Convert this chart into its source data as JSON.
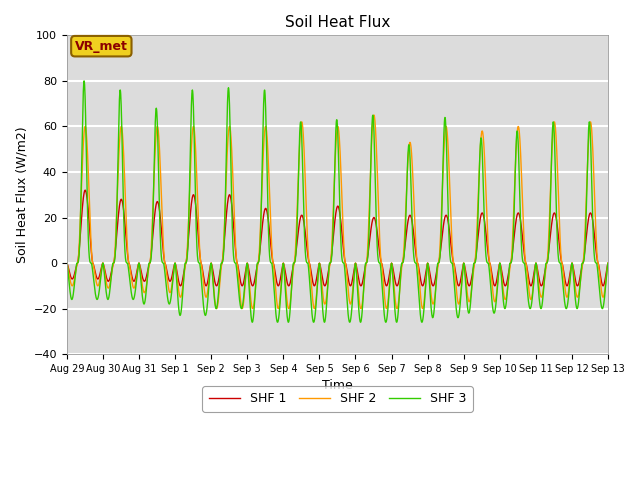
{
  "title": "Soil Heat Flux",
  "xlabel": "Time",
  "ylabel": "Soil Heat Flux (W/m2)",
  "ylim": [
    -40,
    100
  ],
  "annotation": "VR_met",
  "bg_color": "#dcdcdc",
  "legend": [
    "SHF 1",
    "SHF 2",
    "SHF 3"
  ],
  "colors": [
    "#cc0000",
    "#ff9900",
    "#33cc00"
  ],
  "xtick_labels": [
    "Aug 29",
    "Aug 30",
    "Aug 31",
    "Sep 1",
    "Sep 2",
    "Sep 3",
    "Sep 4",
    "Sep 5",
    "Sep 6",
    "Sep 7",
    "Sep 8",
    "Sep 9",
    "Sep 10",
    "Sep 11",
    "Sep 12",
    "Sep 13"
  ],
  "shf1_peaks": [
    32,
    28,
    27,
    30,
    30,
    24,
    21,
    25,
    20,
    21,
    21,
    22,
    22,
    22,
    22
  ],
  "shf2_peaks": [
    60,
    60,
    60,
    60,
    60,
    60,
    62,
    60,
    65,
    53,
    60,
    58,
    60,
    62,
    62
  ],
  "shf3_peaks": [
    80,
    76,
    68,
    76,
    77,
    76,
    62,
    63,
    65,
    52,
    64,
    55,
    58,
    62,
    62
  ],
  "shf1_troughs": [
    -7,
    -8,
    -8,
    -10,
    -10,
    -10,
    -10,
    -10,
    -10,
    -10,
    -10,
    -10,
    -10,
    -10,
    -10
  ],
  "shf2_troughs": [
    -10,
    -11,
    -13,
    -15,
    -20,
    -20,
    -20,
    -18,
    -20,
    -20,
    -18,
    -17,
    -16,
    -15,
    -15
  ],
  "shf3_troughs": [
    -16,
    -16,
    -18,
    -23,
    -20,
    -26,
    -26,
    -26,
    -26,
    -26,
    -24,
    -22,
    -20,
    -20,
    -20
  ]
}
